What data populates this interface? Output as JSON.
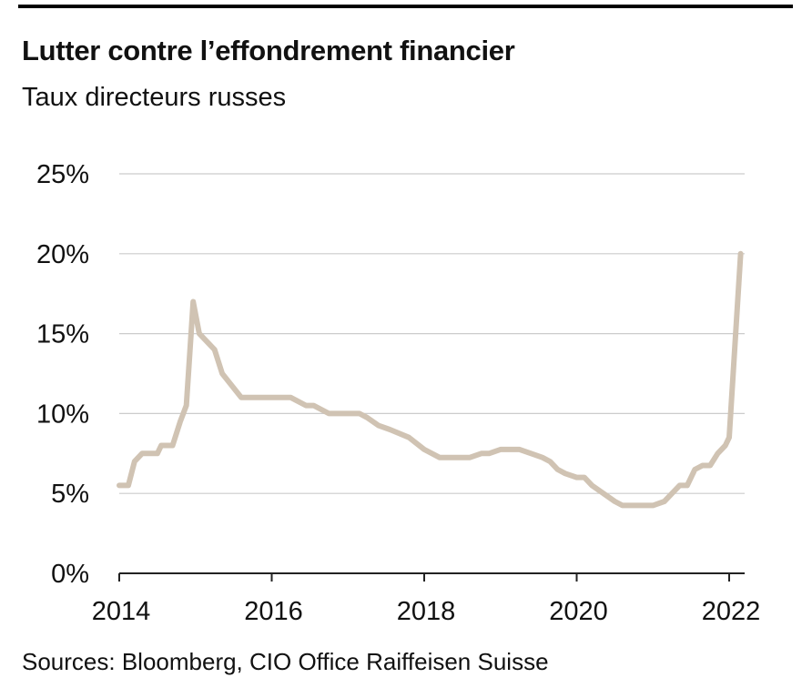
{
  "header": {
    "title": "Lutter contre l’effondrement financier",
    "subtitle": "Taux directeurs russes"
  },
  "footer": {
    "source": "Sources: Bloomberg, CIO Office Raiffeisen Suisse"
  },
  "colors": {
    "line": "#d0c3b3",
    "grid": "#cccccc",
    "axis": "#222222"
  },
  "chart_data": {
    "type": "line",
    "title": "Lutter contre l’effondrement financier",
    "subtitle": "Taux directeurs russes",
    "xlabel": "",
    "ylabel": "",
    "xlim": [
      2014,
      2022.2
    ],
    "ylim": [
      0,
      25
    ],
    "x_ticks": [
      2014,
      2016,
      2018,
      2020,
      2022
    ],
    "x_tick_labels": [
      "2014",
      "2016",
      "2018",
      "2020",
      "2022"
    ],
    "y_ticks": [
      0,
      5,
      10,
      15,
      20,
      25
    ],
    "y_tick_labels": [
      "0%",
      "5%",
      "10%",
      "15%",
      "20%",
      "25%"
    ],
    "grid": "horizontal",
    "series": [
      {
        "x": [
          2014.0,
          2014.12,
          2014.2,
          2014.3,
          2014.5,
          2014.55,
          2014.6,
          2014.7,
          2014.8,
          2014.88,
          2014.97,
          2015.05,
          2015.25,
          2015.35,
          2015.6,
          2016.25,
          2016.45,
          2016.55,
          2016.75,
          2017.0,
          2017.15,
          2017.25,
          2017.4,
          2017.55,
          2017.8,
          2018.0,
          2018.2,
          2018.6,
          2018.75,
          2018.85,
          2019.0,
          2019.25,
          2019.4,
          2019.55,
          2019.65,
          2019.75,
          2019.85,
          2020.0,
          2020.1,
          2020.2,
          2020.5,
          2020.6,
          2020.8,
          2021.0,
          2021.15,
          2021.25,
          2021.35,
          2021.45,
          2021.55,
          2021.65,
          2021.75,
          2021.85,
          2021.95,
          2022.0,
          2022.15
        ],
        "y": [
          5.5,
          5.5,
          7.0,
          7.5,
          7.5,
          8.0,
          8.0,
          8.0,
          9.5,
          10.5,
          17.0,
          15.0,
          14.0,
          12.5,
          11.0,
          11.0,
          10.5,
          10.5,
          10.0,
          10.0,
          10.0,
          9.75,
          9.25,
          9.0,
          8.5,
          7.75,
          7.25,
          7.25,
          7.5,
          7.5,
          7.75,
          7.75,
          7.5,
          7.25,
          7.0,
          6.5,
          6.25,
          6.0,
          6.0,
          5.5,
          4.5,
          4.25,
          4.25,
          4.25,
          4.5,
          5.0,
          5.5,
          5.5,
          6.5,
          6.75,
          6.75,
          7.5,
          8.0,
          8.5,
          20.0
        ]
      }
    ]
  }
}
